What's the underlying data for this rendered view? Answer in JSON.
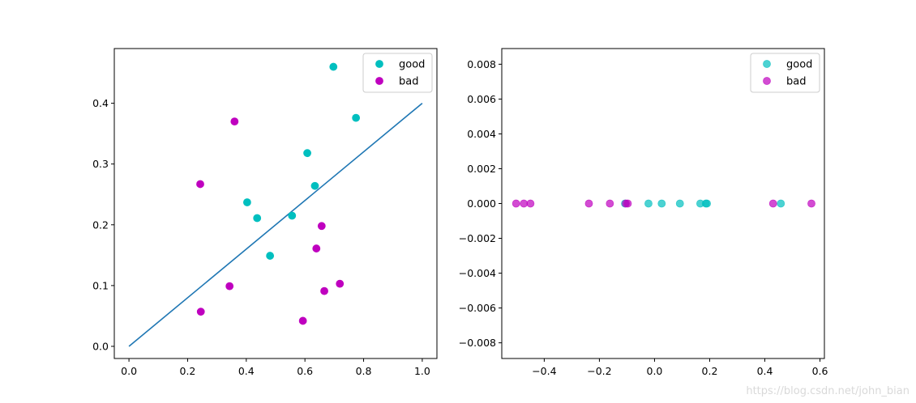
{
  "chart_data": [
    {
      "type": "scatter",
      "title": "",
      "xlabel": "",
      "ylabel": "",
      "xlim": [
        -0.05,
        1.05
      ],
      "ylim": [
        -0.02,
        0.49
      ],
      "xticks": [
        0.0,
        0.2,
        0.4,
        0.6,
        0.8,
        1.0
      ],
      "xtick_labels": [
        "0.0",
        "0.2",
        "0.4",
        "0.6",
        "0.8",
        "1.0"
      ],
      "yticks": [
        0.0,
        0.1,
        0.2,
        0.3,
        0.4
      ],
      "ytick_labels": [
        "0.0",
        "0.1",
        "0.2",
        "0.3",
        "0.4"
      ],
      "grid": false,
      "legend_position": "top-right",
      "series": [
        {
          "name": "good",
          "color": "#00bfbf",
          "alpha": 1,
          "points": [
            [
              0.697,
              0.46
            ],
            [
              0.774,
              0.376
            ],
            [
              0.634,
              0.264
            ],
            [
              0.608,
              0.318
            ],
            [
              0.556,
              0.215
            ],
            [
              0.403,
              0.237
            ],
            [
              0.481,
              0.149
            ],
            [
              0.437,
              0.211
            ]
          ]
        },
        {
          "name": "bad",
          "color": "#bf00bf",
          "alpha": 1,
          "points": [
            [
              0.666,
              0.091
            ],
            [
              0.243,
              0.267
            ],
            [
              0.245,
              0.057
            ],
            [
              0.343,
              0.099
            ],
            [
              0.639,
              0.161
            ],
            [
              0.657,
              0.198
            ],
            [
              0.36,
              0.37
            ],
            [
              0.593,
              0.042
            ],
            [
              0.719,
              0.103
            ]
          ]
        }
      ],
      "line": {
        "x": [
          0.0,
          1.0
        ],
        "y": [
          0.0,
          0.4
        ],
        "color": "#1f77b4"
      }
    },
    {
      "type": "scatter",
      "title": "",
      "xlabel": "",
      "ylabel": "",
      "xlim": [
        -0.554,
        0.616
      ],
      "ylim": [
        -0.0089,
        0.0089
      ],
      "xticks": [
        -0.4,
        -0.2,
        0.0,
        0.2,
        0.4,
        0.6
      ],
      "xtick_labels": [
        "−0.4",
        "−0.2",
        "0.0",
        "0.2",
        "0.4",
        "0.6"
      ],
      "yticks": [
        -0.008,
        -0.006,
        -0.004,
        -0.002,
        0.0,
        0.002,
        0.004,
        0.006,
        0.008
      ],
      "ytick_labels": [
        "−0.008",
        "−0.006",
        "−0.004",
        "−0.002",
        "0.000",
        "0.002",
        "0.004",
        "0.006",
        "0.008"
      ],
      "grid": false,
      "legend_position": "top-right",
      "series": [
        {
          "name": "good",
          "color": "#00bfbf",
          "alpha": 0.7,
          "points": [
            [
              -0.107,
              0
            ],
            [
              -0.022,
              0
            ],
            [
              0.026,
              0
            ],
            [
              0.092,
              0
            ],
            [
              0.166,
              0
            ],
            [
              0.186,
              0
            ],
            [
              0.19,
              0
            ],
            [
              0.458,
              0
            ]
          ]
        },
        {
          "name": "bad",
          "color": "#bf00bf",
          "alpha": 0.7,
          "points": [
            [
              -0.502,
              0
            ],
            [
              -0.474,
              0
            ],
            [
              -0.45,
              0
            ],
            [
              -0.238,
              0
            ],
            [
              -0.162,
              0
            ],
            [
              -0.104,
              0
            ],
            [
              -0.097,
              0
            ],
            [
              0.43,
              0
            ],
            [
              0.569,
              0
            ]
          ]
        }
      ]
    }
  ],
  "watermark": "https://blog.csdn.net/john_bian"
}
